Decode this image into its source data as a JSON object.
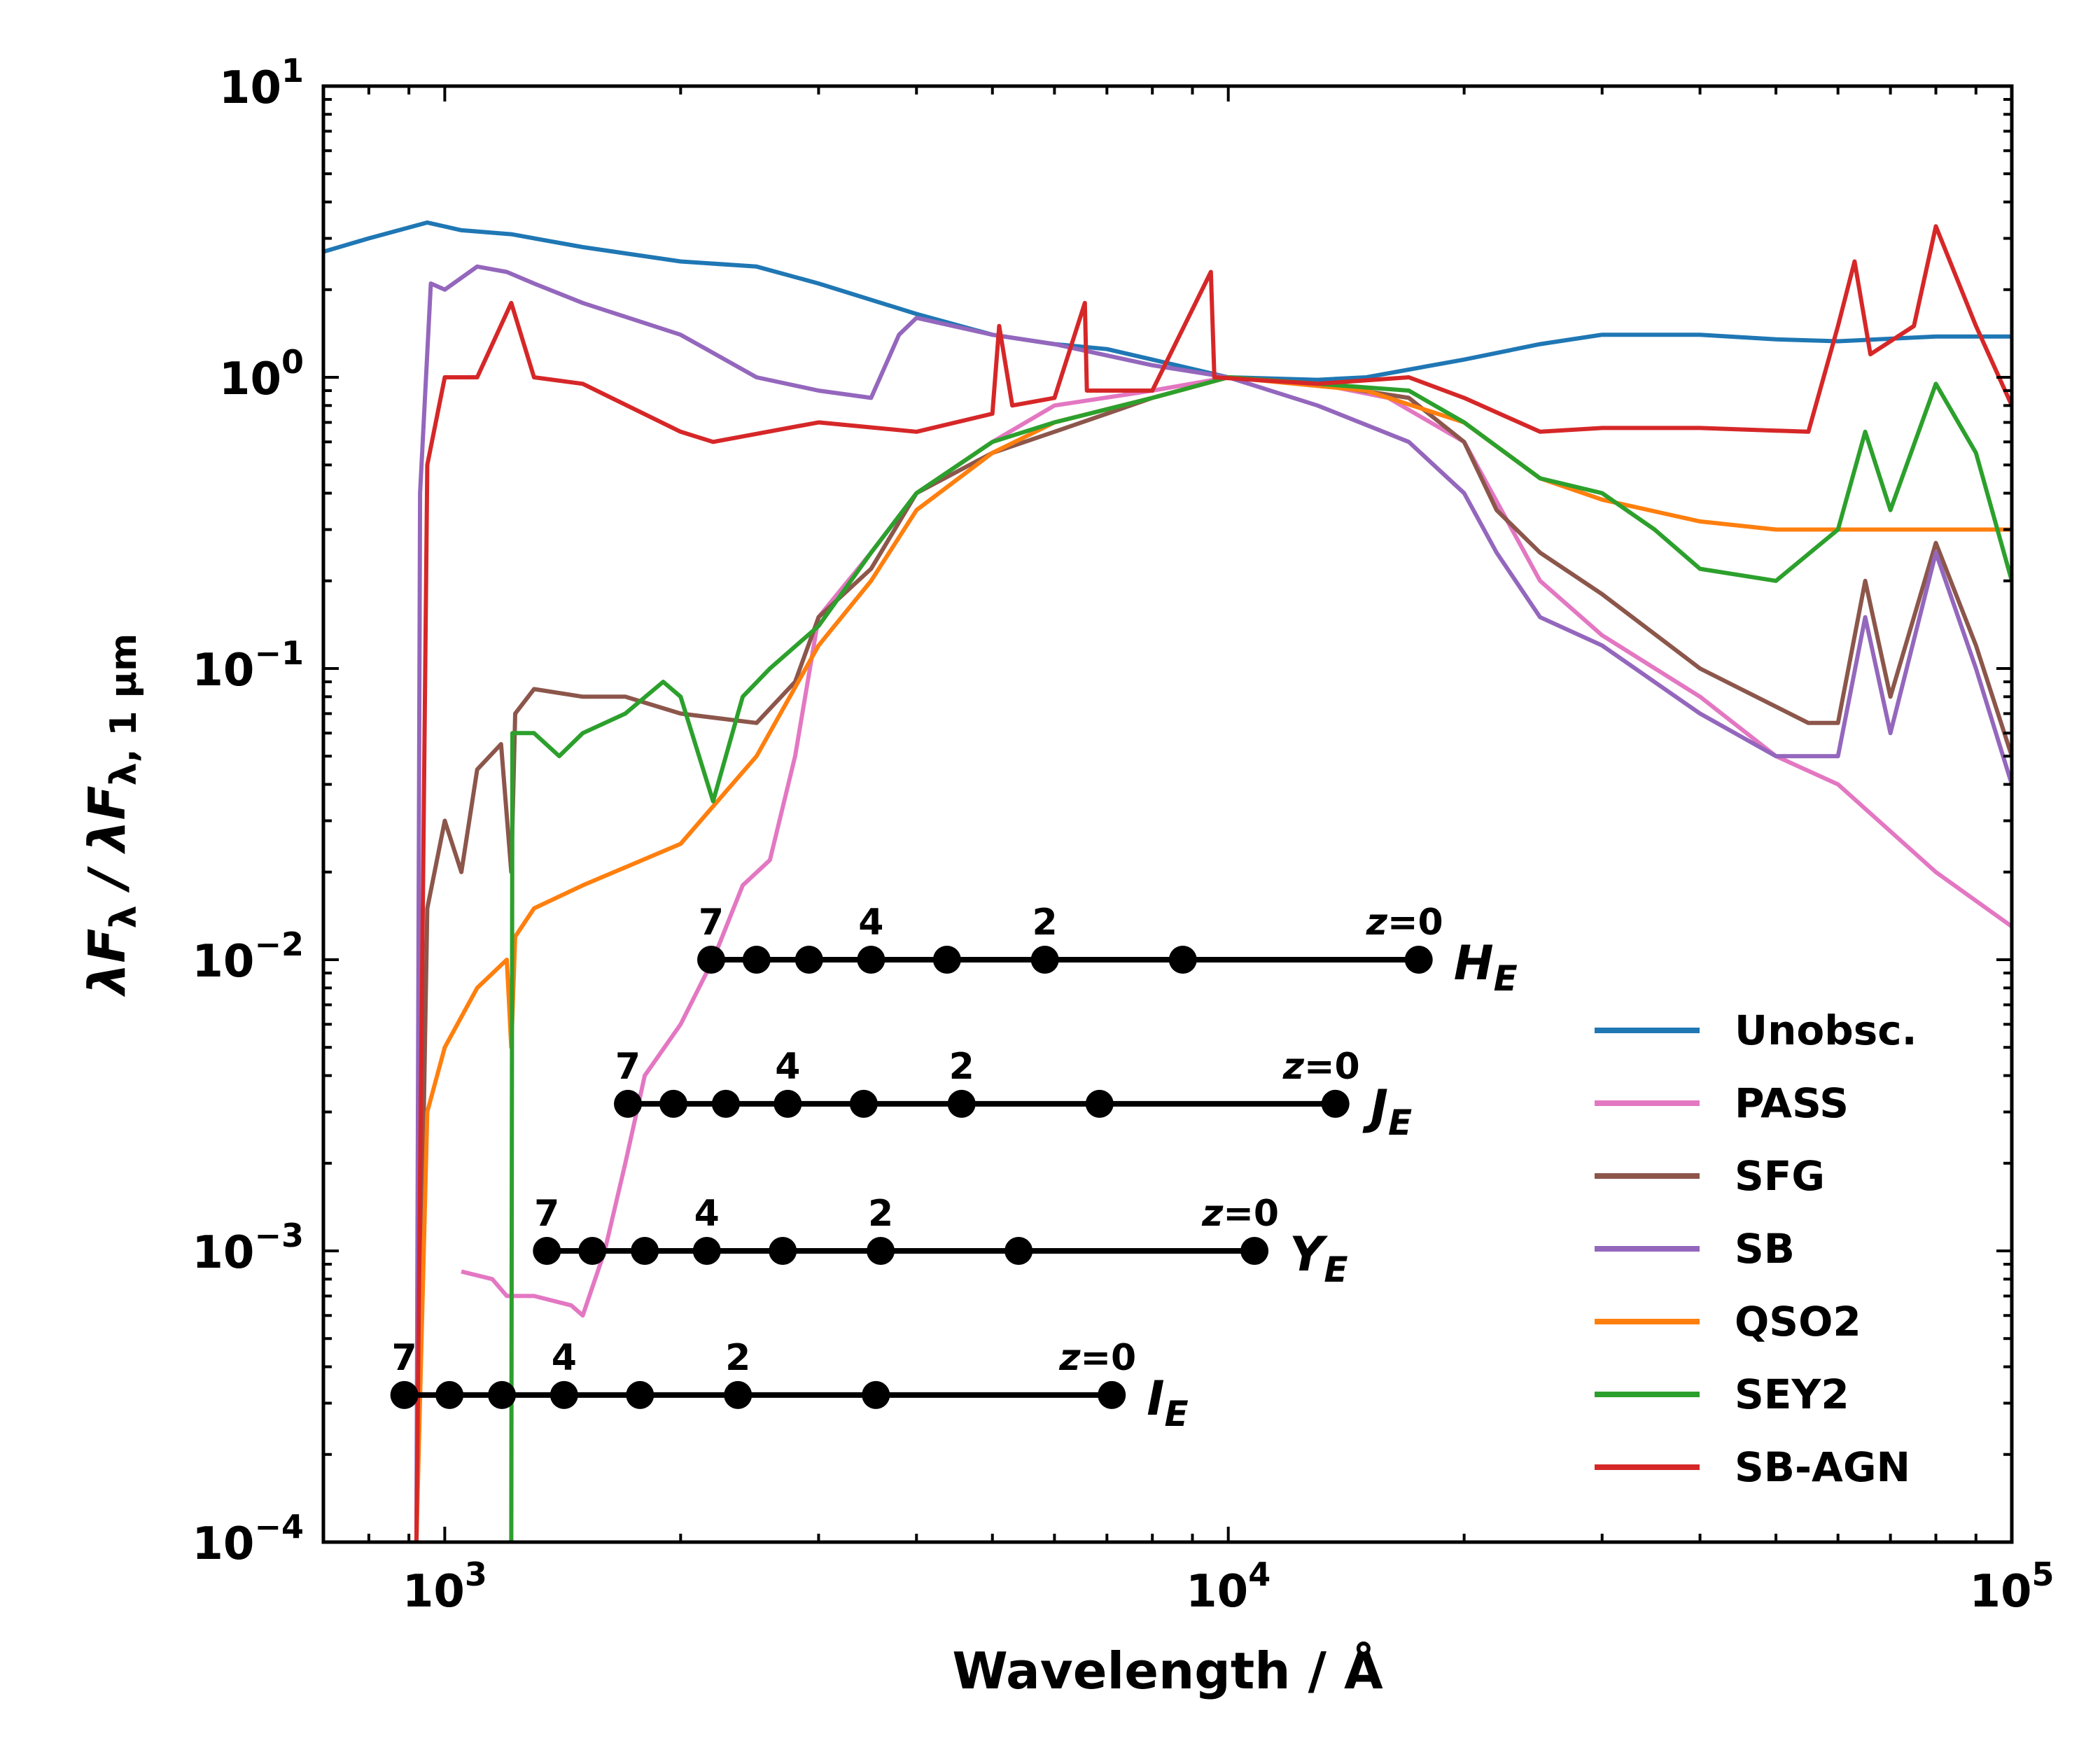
{
  "chart_data": {
    "type": "line",
    "x_scale": "log",
    "y_scale": "log",
    "xlim": [
      700,
      100000
    ],
    "ylim": [
      0.0001,
      10
    ],
    "xlabel": "Wavelength / Å",
    "ylabel": {
      "lead": "λF",
      "sub": "λ",
      "mid": " / λF",
      "sub2": "λ, 1 μm"
    },
    "x_ticks": [
      {
        "value": 1000,
        "base": "10",
        "exp": "3"
      },
      {
        "value": 10000,
        "base": "10",
        "exp": "4"
      },
      {
        "value": 100000,
        "base": "10",
        "exp": "5"
      }
    ],
    "y_ticks": [
      {
        "value": 10,
        "base": "10",
        "exp": "1"
      },
      {
        "value": 1,
        "base": "10",
        "exp": "0"
      },
      {
        "value": 0.1,
        "base": "10",
        "exp": "−1"
      },
      {
        "value": 0.01,
        "base": "10",
        "exp": "−2"
      },
      {
        "value": 0.001,
        "base": "10",
        "exp": "−3"
      },
      {
        "value": 0.0001,
        "base": "10",
        "exp": "−4"
      }
    ],
    "grid": false,
    "legend_position": "bottom-right",
    "series": [
      {
        "name": "Unobsc.",
        "color": "#1f77b4",
        "points": [
          [
            700,
            2.7
          ],
          [
            800,
            3.0
          ],
          [
            950,
            3.4
          ],
          [
            1050,
            3.2
          ],
          [
            1216,
            3.1
          ],
          [
            1500,
            2.8
          ],
          [
            2000,
            2.5
          ],
          [
            2500,
            2.4
          ],
          [
            3000,
            2.1
          ],
          [
            4000,
            1.65
          ],
          [
            5000,
            1.4
          ],
          [
            6000,
            1.3
          ],
          [
            7000,
            1.25
          ],
          [
            8000,
            1.15
          ],
          [
            10000,
            1.0
          ],
          [
            13000,
            0.98
          ],
          [
            15000,
            1.0
          ],
          [
            20000,
            1.15
          ],
          [
            25000,
            1.3
          ],
          [
            30000,
            1.4
          ],
          [
            40000,
            1.4
          ],
          [
            50000,
            1.35
          ],
          [
            60000,
            1.33
          ],
          [
            80000,
            1.38
          ],
          [
            100000,
            1.38
          ]
        ]
      },
      {
        "name": "PASS",
        "color": "#e377c2",
        "points": [
          [
            1050,
            0.00085
          ],
          [
            1150,
            0.0008
          ],
          [
            1200,
            0.0007
          ],
          [
            1300,
            0.0007
          ],
          [
            1450,
            0.00065
          ],
          [
            1500,
            0.0006
          ],
          [
            1600,
            0.001
          ],
          [
            1700,
            0.002
          ],
          [
            1800,
            0.004
          ],
          [
            2000,
            0.006
          ],
          [
            2200,
            0.01
          ],
          [
            2400,
            0.018
          ],
          [
            2600,
            0.022
          ],
          [
            2800,
            0.05
          ],
          [
            3000,
            0.15
          ],
          [
            3500,
            0.25
          ],
          [
            4000,
            0.4
          ],
          [
            5000,
            0.6
          ],
          [
            6000,
            0.8
          ],
          [
            8000,
            0.9
          ],
          [
            10000,
            1.0
          ],
          [
            13000,
            0.95
          ],
          [
            16000,
            0.85
          ],
          [
            20000,
            0.6
          ],
          [
            25000,
            0.2
          ],
          [
            30000,
            0.13
          ],
          [
            40000,
            0.08
          ],
          [
            50000,
            0.05
          ],
          [
            60000,
            0.04
          ],
          [
            80000,
            0.02
          ],
          [
            100000,
            0.013
          ]
        ]
      },
      {
        "name": "SFG",
        "color": "#8c564b",
        "points": [
          [
            920,
            0.0001
          ],
          [
            950,
            0.015
          ],
          [
            1000,
            0.03
          ],
          [
            1050,
            0.02
          ],
          [
            1100,
            0.045
          ],
          [
            1180,
            0.055
          ],
          [
            1216,
            0.02
          ],
          [
            1230,
            0.07
          ],
          [
            1300,
            0.085
          ],
          [
            1500,
            0.08
          ],
          [
            1700,
            0.08
          ],
          [
            2000,
            0.07
          ],
          [
            2500,
            0.065
          ],
          [
            2800,
            0.09
          ],
          [
            3000,
            0.15
          ],
          [
            3500,
            0.22
          ],
          [
            4000,
            0.4
          ],
          [
            5000,
            0.55
          ],
          [
            6000,
            0.65
          ],
          [
            7000,
            0.75
          ],
          [
            8000,
            0.85
          ],
          [
            10000,
            1.0
          ],
          [
            13000,
            0.95
          ],
          [
            17000,
            0.85
          ],
          [
            20000,
            0.6
          ],
          [
            22000,
            0.35
          ],
          [
            25000,
            0.25
          ],
          [
            30000,
            0.18
          ],
          [
            40000,
            0.1
          ],
          [
            55000,
            0.065
          ],
          [
            60000,
            0.065
          ],
          [
            65000,
            0.2
          ],
          [
            70000,
            0.08
          ],
          [
            80000,
            0.27
          ],
          [
            90000,
            0.12
          ],
          [
            100000,
            0.05
          ]
        ]
      },
      {
        "name": "SB",
        "color": "#9467bd",
        "points": [
          [
            920,
            0.0001
          ],
          [
            930,
            0.4
          ],
          [
            960,
            2.1
          ],
          [
            1000,
            2.0
          ],
          [
            1100,
            2.4
          ],
          [
            1200,
            2.3
          ],
          [
            1300,
            2.1
          ],
          [
            1500,
            1.8
          ],
          [
            2000,
            1.4
          ],
          [
            2500,
            1.0
          ],
          [
            3000,
            0.9
          ],
          [
            3500,
            0.85
          ],
          [
            3800,
            1.4
          ],
          [
            4000,
            1.6
          ],
          [
            5000,
            1.4
          ],
          [
            6000,
            1.3
          ],
          [
            8000,
            1.1
          ],
          [
            10000,
            1.0
          ],
          [
            13000,
            0.8
          ],
          [
            17000,
            0.6
          ],
          [
            20000,
            0.4
          ],
          [
            22000,
            0.25
          ],
          [
            25000,
            0.15
          ],
          [
            30000,
            0.12
          ],
          [
            40000,
            0.07
          ],
          [
            50000,
            0.05
          ],
          [
            60000,
            0.05
          ],
          [
            65000,
            0.15
          ],
          [
            70000,
            0.06
          ],
          [
            80000,
            0.25
          ],
          [
            90000,
            0.1
          ],
          [
            100000,
            0.04
          ]
        ]
      },
      {
        "name": "QSO2",
        "color": "#ff7f0e",
        "points": [
          [
            920,
            0.0001
          ],
          [
            950,
            0.003
          ],
          [
            1000,
            0.005
          ],
          [
            1100,
            0.008
          ],
          [
            1200,
            0.01
          ],
          [
            1216,
            0.005
          ],
          [
            1230,
            0.012
          ],
          [
            1300,
            0.015
          ],
          [
            1500,
            0.018
          ],
          [
            2000,
            0.025
          ],
          [
            2500,
            0.05
          ],
          [
            3000,
            0.12
          ],
          [
            3500,
            0.2
          ],
          [
            4000,
            0.35
          ],
          [
            5000,
            0.55
          ],
          [
            6000,
            0.7
          ],
          [
            8000,
            0.85
          ],
          [
            10000,
            1.0
          ],
          [
            15000,
            0.9
          ],
          [
            20000,
            0.7
          ],
          [
            25000,
            0.45
          ],
          [
            30000,
            0.38
          ],
          [
            40000,
            0.32
          ],
          [
            50000,
            0.3
          ],
          [
            60000,
            0.3
          ],
          [
            80000,
            0.3
          ],
          [
            100000,
            0.3
          ]
        ]
      },
      {
        "name": "SEY2",
        "color": "#2ca02c",
        "points": [
          [
            1216,
            0.0001
          ],
          [
            1220,
            0.06
          ],
          [
            1300,
            0.06
          ],
          [
            1400,
            0.05
          ],
          [
            1500,
            0.06
          ],
          [
            1700,
            0.07
          ],
          [
            1900,
            0.09
          ],
          [
            2000,
            0.08
          ],
          [
            2200,
            0.035
          ],
          [
            2400,
            0.08
          ],
          [
            2600,
            0.1
          ],
          [
            3000,
            0.14
          ],
          [
            3500,
            0.25
          ],
          [
            4000,
            0.4
          ],
          [
            5000,
            0.6
          ],
          [
            6000,
            0.7
          ],
          [
            8000,
            0.85
          ],
          [
            10000,
            1.0
          ],
          [
            13000,
            0.95
          ],
          [
            17000,
            0.9
          ],
          [
            20000,
            0.7
          ],
          [
            25000,
            0.45
          ],
          [
            30000,
            0.4
          ],
          [
            35000,
            0.3
          ],
          [
            40000,
            0.22
          ],
          [
            50000,
            0.2
          ],
          [
            60000,
            0.3
          ],
          [
            65000,
            0.65
          ],
          [
            70000,
            0.35
          ],
          [
            80000,
            0.95
          ],
          [
            90000,
            0.55
          ],
          [
            100000,
            0.2
          ]
        ]
      },
      {
        "name": "SB-AGN",
        "color": "#d62728",
        "points": [
          [
            920,
            0.0001
          ],
          [
            950,
            0.5
          ],
          [
            1000,
            1.0
          ],
          [
            1100,
            1.0
          ],
          [
            1216,
            1.8
          ],
          [
            1300,
            1.0
          ],
          [
            1500,
            0.95
          ],
          [
            2000,
            0.65
          ],
          [
            2200,
            0.6
          ],
          [
            3000,
            0.7
          ],
          [
            4000,
            0.65
          ],
          [
            5000,
            0.75
          ],
          [
            5100,
            1.5
          ],
          [
            5300,
            0.8
          ],
          [
            6000,
            0.85
          ],
          [
            6560,
            1.8
          ],
          [
            6600,
            0.9
          ],
          [
            8000,
            0.9
          ],
          [
            9500,
            2.3
          ],
          [
            9600,
            1.0
          ],
          [
            13000,
            0.95
          ],
          [
            17000,
            1.0
          ],
          [
            20000,
            0.85
          ],
          [
            25000,
            0.65
          ],
          [
            30000,
            0.67
          ],
          [
            40000,
            0.67
          ],
          [
            55000,
            0.65
          ],
          [
            60000,
            1.5
          ],
          [
            63000,
            2.5
          ],
          [
            66000,
            1.2
          ],
          [
            75000,
            1.5
          ],
          [
            80000,
            3.3
          ],
          [
            90000,
            1.5
          ],
          [
            100000,
            0.8
          ]
        ]
      }
    ],
    "bands": [
      {
        "name": "H",
        "sub": "E",
        "y": 0.01,
        "x": [
          2188,
          2500,
          2917,
          3500,
          4375,
          5833,
          8750,
          17500
        ],
        "labels": [
          {
            "text": "7",
            "z_index": 0
          },
          {
            "text": "4",
            "z_index": 3
          },
          {
            "text": "2",
            "z_index": 5
          },
          {
            "text": "z=0",
            "z_index": 7
          }
        ]
      },
      {
        "name": "J",
        "sub": "E",
        "y": 0.0032,
        "x": [
          1713,
          1958,
          2284,
          2740,
          3425,
          4567,
          6850,
          13700
        ],
        "labels": [
          {
            "text": "7",
            "z_index": 0
          },
          {
            "text": "4",
            "z_index": 3
          },
          {
            "text": "2",
            "z_index": 5
          },
          {
            "text": "z=0",
            "z_index": 7
          }
        ]
      },
      {
        "name": "Y",
        "sub": "E",
        "y": 0.001,
        "x": [
          1350,
          1543,
          1800,
          2160,
          2700,
          3600,
          5400,
          10800
        ],
        "labels": [
          {
            "text": "7",
            "z_index": 0
          },
          {
            "text": "4",
            "z_index": 3
          },
          {
            "text": "2",
            "z_index": 5
          },
          {
            "text": "z=0",
            "z_index": 7
          }
        ]
      },
      {
        "name": "I",
        "sub": "E",
        "y": 0.00032,
        "x": [
          888,
          1014,
          1183,
          1420,
          1775,
          2367,
          3550,
          7100
        ],
        "labels": [
          {
            "text": "7",
            "z_index": 0
          },
          {
            "text": "4",
            "z_index": 3
          },
          {
            "text": "2",
            "z_index": 5
          },
          {
            "text": "z=0",
            "z_index": 7
          }
        ]
      }
    ]
  }
}
